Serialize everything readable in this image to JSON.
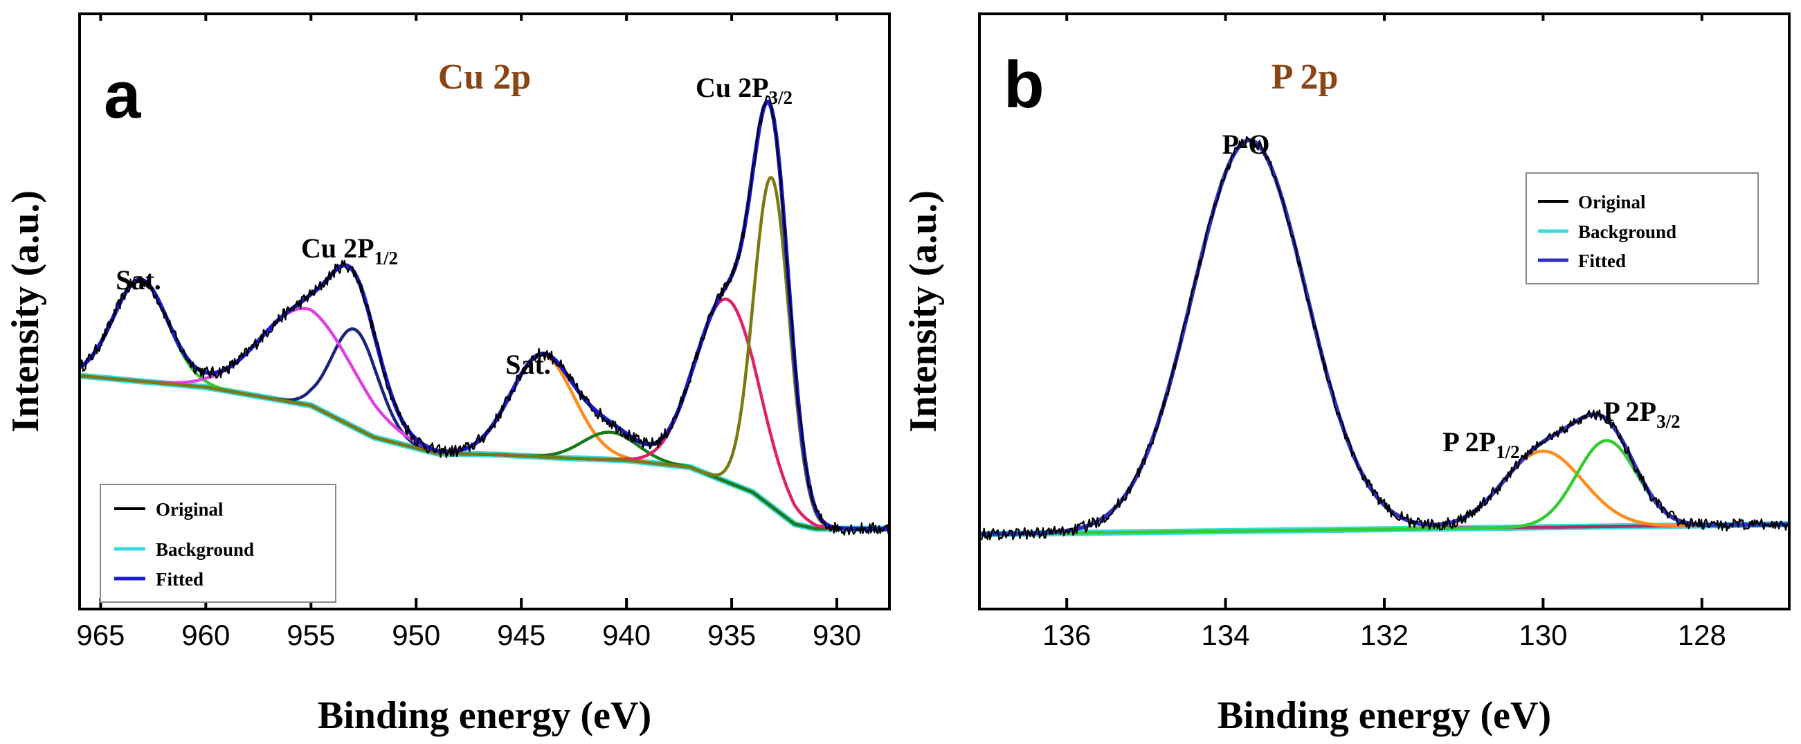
{
  "chart_data": [
    {
      "panel": "a",
      "type": "line",
      "title": "Cu 2p",
      "xlabel": "Binding energy (eV)",
      "ylabel": "Intensity (a.u.)",
      "xlim": [
        966,
        927.5
      ],
      "ylim": [
        0,
        1
      ],
      "xticks": [
        965,
        960,
        955,
        950,
        945,
        940,
        935,
        930
      ],
      "xticklabels": [
        "965",
        "960",
        "955",
        "950",
        "945",
        "940",
        "935",
        "930"
      ],
      "legend": {
        "position": "bottom-left",
        "entries": [
          "Original",
          "Background",
          "Fitted"
        ]
      },
      "annotations": [
        {
          "text": "Sat.",
          "x": 963,
          "y": 0.63
        },
        {
          "main": "Cu 2P",
          "sub": "1/2",
          "x": 953,
          "y": 0.77
        },
        {
          "text": "Sat.",
          "x": 944,
          "y": 0.48
        },
        {
          "main": "Cu 2P",
          "sub": "3/2",
          "x": 933.2,
          "y": 1.05
        }
      ],
      "background": {
        "name": "Background",
        "color": "#33dddd",
        "x": [
          966,
          960,
          955,
          952,
          949,
          946,
          943,
          940,
          937,
          934,
          932,
          931,
          929,
          927.5
        ],
        "y": [
          0.435,
          0.41,
          0.37,
          0.3,
          0.265,
          0.262,
          0.255,
          0.25,
          0.235,
          0.18,
          0.11,
          0.1,
          0.1,
          0.1
        ]
      },
      "components": [
        {
          "name": "Sat. 963",
          "color": "#33cc33",
          "center": 963.1,
          "height": 0.222,
          "sigma": 1.3
        },
        {
          "name": "Cu 2P1/2 (952.9)",
          "color": "#1a237e",
          "center": 952.9,
          "height": 0.215,
          "sigma": 1.1
        },
        {
          "name": "955",
          "color": "#e040e0",
          "center": 955.2,
          "height": 0.21,
          "sigma": 2.2
        },
        {
          "name": "Sat. 944",
          "color": "#ff8c1a",
          "center": 944,
          "height": 0.223,
          "sigma": 1.5
        },
        {
          "name": "940.8",
          "color": "#1a7a1a",
          "center": 940.8,
          "height": 0.06,
          "sigma": 1.3
        },
        {
          "name": "935.2",
          "color": "#e0206a",
          "center": 935.2,
          "height": 0.4,
          "sigma": 1.5
        },
        {
          "name": "Cu 2P3/2 (933.1)",
          "color": "#7a7a10",
          "center": 933.1,
          "height": 0.72,
          "sigma": 0.85
        }
      ],
      "fitted": {
        "name": "Fitted",
        "color": "#1a1ad6"
      },
      "original": {
        "name": "Original",
        "color": "#000000",
        "noise": 0.014
      }
    },
    {
      "panel": "b",
      "type": "line",
      "title": "P 2p",
      "xlabel": "Binding energy (eV)",
      "ylabel": "Intensity (a.u.)",
      "xlim": [
        137.1,
        126.9
      ],
      "ylim": [
        0,
        1
      ],
      "xticks": [
        136,
        134,
        132,
        130,
        128
      ],
      "xticklabels": [
        "136",
        "134",
        "132",
        "130",
        "128"
      ],
      "legend": {
        "position": "top-right",
        "entries": [
          "Original",
          "Background",
          "Fitted"
        ]
      },
      "annotations": [
        {
          "text": "P-O",
          "x": 133.7,
          "y": 0.99
        },
        {
          "main": "P 2P",
          "sub": "1/2",
          "x": 130.6,
          "y": 0.3
        },
        {
          "main": "P 2P",
          "sub": "3/2",
          "x": 128.9,
          "y": 0.37
        }
      ],
      "background": {
        "name": "Background",
        "color": "#33dddd",
        "x": [
          137.1,
          126.9
        ],
        "y": [
          0.082,
          0.102
        ]
      },
      "components": [
        {
          "name": "P-O (133.7)",
          "color": "#b03060",
          "center": 133.7,
          "height": 0.795,
          "sigma": 0.72
        },
        {
          "name": "P 2P1/2 (130.0)",
          "color": "#ff8c1a",
          "center": 130,
          "height": 0.155,
          "sigma": 0.5
        },
        {
          "name": "P 2P3/2 (129.2)",
          "color": "#33cc33",
          "center": 129.2,
          "height": 0.175,
          "sigma": 0.38
        }
      ],
      "fitted": {
        "name": "Fitted",
        "color": "#3030c8"
      },
      "original": {
        "name": "Original",
        "color": "#000000",
        "noise": 0.012
      }
    }
  ]
}
